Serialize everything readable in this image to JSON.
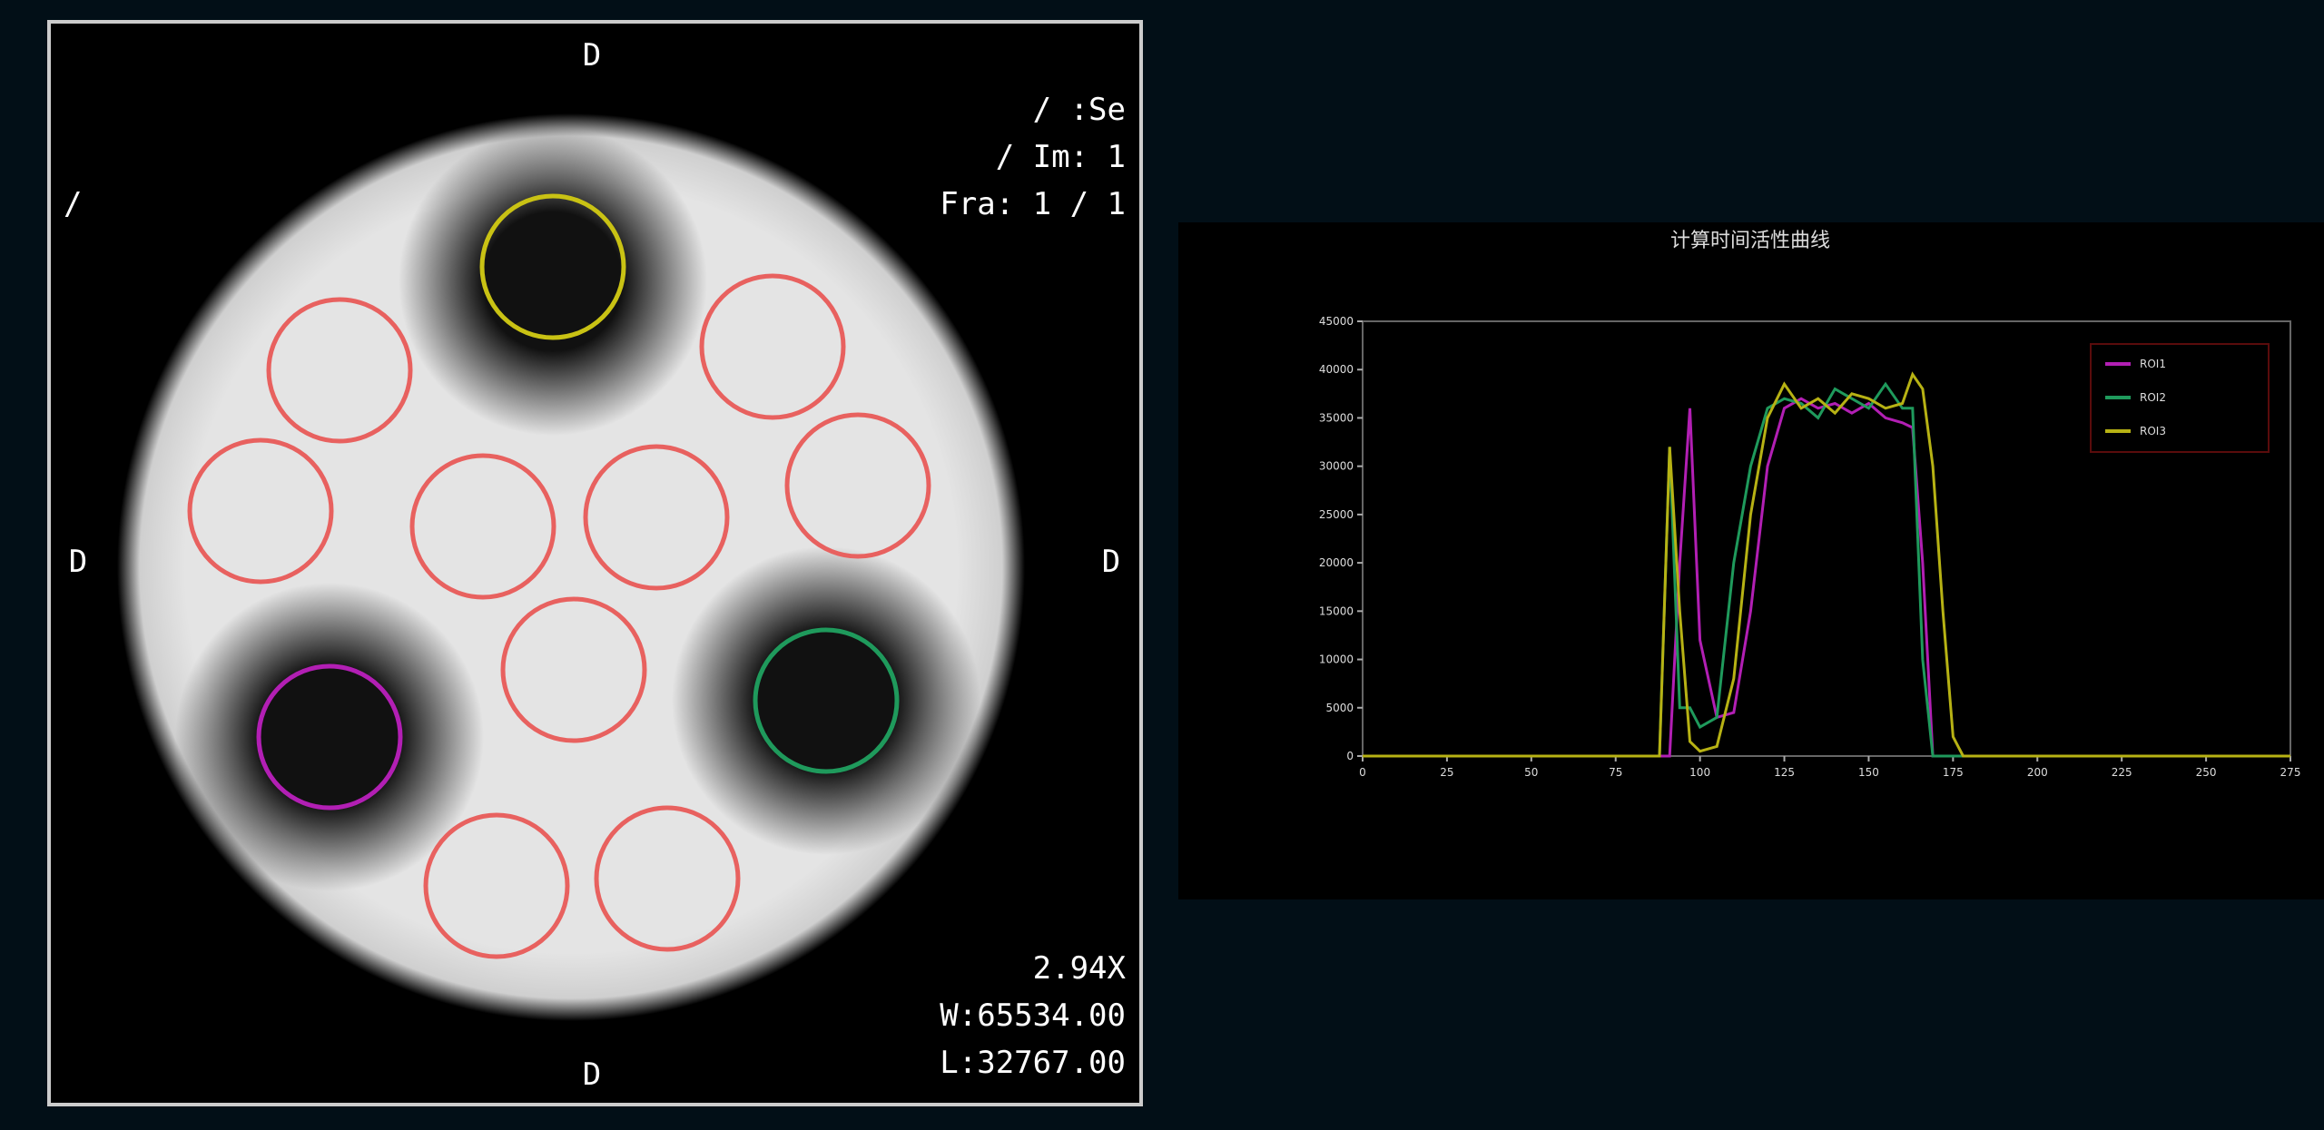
{
  "viewer": {
    "orient_top": "D",
    "orient_left": "D",
    "orient_right": "D",
    "orient_bottom": "D",
    "series_info": "/ :Se",
    "image_info": "/ Im: 1",
    "frame_info": "Fra: 1 / 1",
    "patient_info": "/",
    "zoom": "2.94X",
    "window_width": "W:65534.00",
    "window_level": "L:32767.00"
  },
  "chart_data": {
    "type": "line",
    "title": "计算时间活性曲线",
    "x": [
      0,
      25,
      50,
      75,
      85,
      88,
      91,
      94,
      97,
      100,
      105,
      110,
      115,
      120,
      125,
      130,
      135,
      140,
      145,
      150,
      155,
      160,
      163,
      166,
      169,
      172,
      175,
      178,
      181,
      200,
      225,
      250,
      275
    ],
    "xlim": [
      0,
      275
    ],
    "xticks": [
      0,
      25,
      50,
      75,
      100,
      125,
      150,
      175,
      200,
      225,
      250,
      275
    ],
    "ylim": [
      0,
      45000
    ],
    "yticks": [
      0,
      5000,
      10000,
      15000,
      20000,
      25000,
      30000,
      35000,
      40000,
      45000
    ],
    "legend_position": "upper right",
    "series": [
      {
        "name": "ROI1",
        "color": "#b21fb4",
        "values": [
          0,
          0,
          0,
          0,
          0,
          0,
          0,
          20000,
          36000,
          12000,
          4000,
          4500,
          15000,
          30000,
          36000,
          37000,
          36000,
          36500,
          35500,
          36500,
          35000,
          34500,
          34000,
          20000,
          0,
          0,
          0,
          0,
          0,
          0,
          0,
          0,
          0
        ]
      },
      {
        "name": "ROI2",
        "color": "#1f9a5c",
        "values": [
          0,
          0,
          0,
          0,
          0,
          0,
          32000,
          5000,
          5000,
          3000,
          4000,
          20000,
          30000,
          36000,
          37000,
          36500,
          35000,
          38000,
          37000,
          36000,
          38500,
          36000,
          36000,
          10000,
          0,
          0,
          0,
          0,
          0,
          0,
          0,
          0,
          0
        ]
      },
      {
        "name": "ROI3",
        "color": "#b7b214",
        "values": [
          0,
          0,
          0,
          0,
          0,
          0,
          32000,
          15000,
          1500,
          500,
          1000,
          8000,
          25000,
          35000,
          38500,
          36000,
          37000,
          35500,
          37500,
          37000,
          36000,
          36500,
          39500,
          38000,
          30000,
          15000,
          2000,
          0,
          0,
          0,
          0,
          0,
          0
        ]
      }
    ]
  }
}
